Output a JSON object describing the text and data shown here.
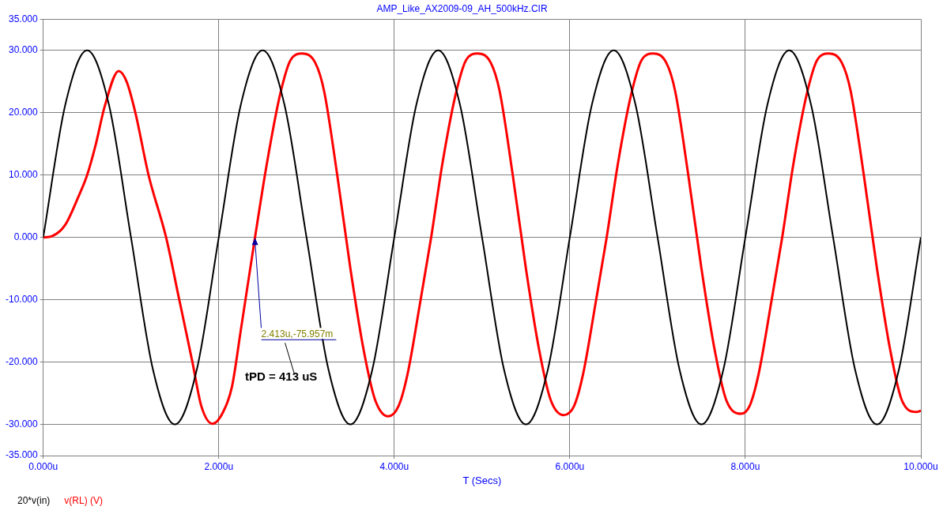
{
  "chart_data": {
    "type": "line",
    "title": "AMP_Like_AX2009-09_AH_500kHz.CIR",
    "xlabel": "T (Secs)",
    "xlim": [
      0,
      10
    ],
    "xticks": [
      {
        "value": 0,
        "label": "0.000u"
      },
      {
        "value": 2,
        "label": "2.000u"
      },
      {
        "value": 4,
        "label": "4.000u"
      },
      {
        "value": 6,
        "label": "6.000u"
      },
      {
        "value": 8,
        "label": "8.000u"
      },
      {
        "value": 10,
        "label": "10.000u"
      }
    ],
    "ylim": [
      -35,
      35
    ],
    "yticks": [
      {
        "value": -35,
        "label": "-35.000"
      },
      {
        "value": -30,
        "label": "-30.000"
      },
      {
        "value": -20,
        "label": "-20.000"
      },
      {
        "value": -10,
        "label": "-10.000"
      },
      {
        "value": 0,
        "label": "0.000"
      },
      {
        "value": 10,
        "label": "10.000"
      },
      {
        "value": 20,
        "label": "20.000"
      },
      {
        "value": 30,
        "label": "30.000"
      },
      {
        "value": 35,
        "label": "35.000"
      }
    ],
    "grid": true,
    "legend": "bottom left",
    "marker": "none",
    "line_style": "solid",
    "series": [
      {
        "name": "20*v(in)",
        "color": "#000000",
        "x": [
          0,
          0.25,
          0.5,
          0.75,
          1,
          1.25,
          1.5,
          1.75,
          2,
          2.25,
          2.5,
          2.75,
          3,
          3.25,
          3.5,
          3.75,
          4,
          4.25,
          4.5,
          4.75,
          5,
          5.25,
          5.5,
          5.75,
          6,
          6.25,
          6.5,
          6.75,
          7,
          7.25,
          7.5,
          7.75,
          8,
          8.25,
          8.5,
          8.75,
          9,
          9.25,
          9.5,
          9.75,
          10
        ],
        "values": [
          0,
          21.2,
          30,
          21.2,
          0,
          -21.2,
          -30,
          -21.2,
          0,
          21.2,
          30,
          21.2,
          0,
          -21.2,
          -30,
          -21.2,
          0,
          21.2,
          30,
          21.2,
          0,
          -21.2,
          -30,
          -21.2,
          0,
          21.2,
          30,
          21.2,
          0,
          -21.2,
          -30,
          -21.2,
          0,
          21.2,
          30,
          21.2,
          0,
          -21.2,
          -30,
          -21.2,
          0
        ]
      },
      {
        "name": "v(RL) (V)",
        "color": "#ff0000",
        "x": [
          0,
          0.1,
          0.25,
          0.4,
          0.5,
          0.6,
          0.7,
          0.86,
          0.95,
          1.05,
          1.2,
          1.4,
          1.55,
          1.7,
          1.8,
          1.93,
          2.05,
          2.15,
          2.25,
          2.413,
          2.55,
          2.7,
          2.82,
          2.95,
          3.1,
          3.2,
          3.35,
          3.5,
          3.65,
          3.78,
          3.93,
          4.05,
          4.15,
          4.3,
          4.42,
          4.55,
          4.7,
          4.82,
          4.95,
          5.1,
          5.2,
          5.35,
          5.5,
          5.65,
          5.78,
          5.93,
          6.05,
          6.15,
          6.3,
          6.42,
          6.55,
          6.7,
          6.82,
          6.95,
          7.1,
          7.2,
          7.35,
          7.5,
          7.65,
          7.78,
          7.95,
          8.05,
          8.15,
          8.3,
          8.42,
          8.55,
          8.7,
          8.82,
          8.95,
          9.1,
          9.2,
          9.35,
          9.5,
          9.65,
          9.78,
          9.95,
          10
        ],
        "values": [
          0,
          0.2,
          2,
          6.5,
          10,
          15,
          21,
          26.7,
          25,
          20,
          10,
          0,
          -10,
          -20,
          -27,
          -29.9,
          -28,
          -24,
          -15,
          0,
          12,
          23,
          28.5,
          29.5,
          28,
          23.5,
          10,
          -5,
          -18,
          -26,
          -28.7,
          -27,
          -22,
          -10,
          0,
          12,
          23,
          28.5,
          29.5,
          28,
          23.5,
          10,
          -5,
          -18,
          -26,
          -28.5,
          -27,
          -22,
          -10,
          0,
          12,
          23,
          28.5,
          29.5,
          28,
          23.5,
          10,
          -5,
          -18,
          -26,
          -28.3,
          -27,
          -22,
          -10,
          0,
          12,
          23,
          28.5,
          29.5,
          28,
          23.5,
          10,
          -5,
          -18,
          -26,
          -28,
          -27.8
        ]
      }
    ],
    "annotations": [
      {
        "text": "2.413u,-75.957m",
        "x": 2.413,
        "y": -0.075957
      },
      "tPD = 413 uS"
    ]
  }
}
